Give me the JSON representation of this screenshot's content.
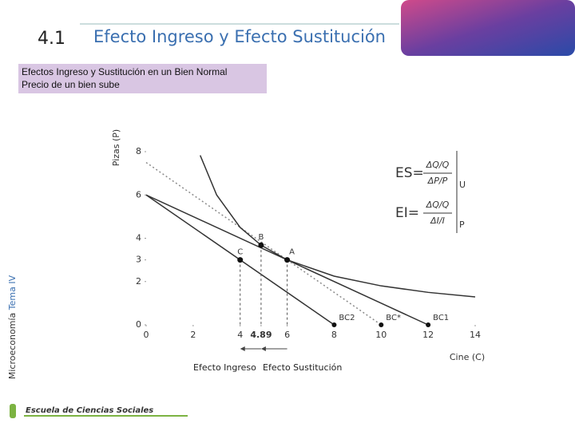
{
  "header": {
    "number": "4.1",
    "title": "Efecto Ingreso y Efecto Sustitución"
  },
  "subtitle": [
    "Efectos Ingreso y Sustitución en un Bien Normal",
    "Precio de un bien sube"
  ],
  "side_label": {
    "course": "Microeconomía",
    "topic": "Tema IV"
  },
  "footer": {
    "school": "Escuela de Ciencias Sociales"
  },
  "chart_data": {
    "type": "line",
    "y_label": "Pizas (P)",
    "x_label": "Cine (C)",
    "xlim": [
      0,
      14
    ],
    "ylim": [
      0,
      8
    ],
    "xticks": [
      0,
      2,
      4,
      4.89,
      6,
      8,
      10,
      12,
      14
    ],
    "yticks": [
      0,
      2,
      3,
      4,
      6,
      8
    ],
    "series": [
      {
        "name": "BC1",
        "color": "#333333",
        "x": [
          0,
          12
        ],
        "values": [
          6,
          0
        ]
      },
      {
        "name": "BC2",
        "color": "#333333",
        "x": [
          0,
          8
        ],
        "values": [
          6,
          0
        ]
      },
      {
        "name": "BC*",
        "color": "#8a8a8a",
        "dashed": true,
        "x": [
          0,
          10
        ],
        "values": [
          7.5,
          0
        ]
      },
      {
        "color": "#333333",
        "x": [
          2.3,
          3,
          4,
          4.89,
          6,
          8,
          10,
          12,
          14
        ],
        "values": [
          7.83,
          6,
          4.5,
          3.68,
          3,
          2.25,
          1.8,
          1.5,
          1.29
        ]
      }
    ],
    "points": [
      {
        "label": "C",
        "x": 4,
        "y": 3
      },
      {
        "label": "B",
        "x": 4.89,
        "y": 3.68
      },
      {
        "label": "A",
        "x": 6,
        "y": 3
      }
    ],
    "effects": [
      "Efecto Ingreso",
      "Efecto Sustitución"
    ],
    "formulas": [
      {
        "lhs": "ES=",
        "num": "ΔQ/Q",
        "den": "ΔP/P",
        "tag": "U"
      },
      {
        "lhs": "EI=",
        "num": "ΔQ/Q",
        "den": "ΔI/I",
        "tag": "P"
      }
    ]
  }
}
